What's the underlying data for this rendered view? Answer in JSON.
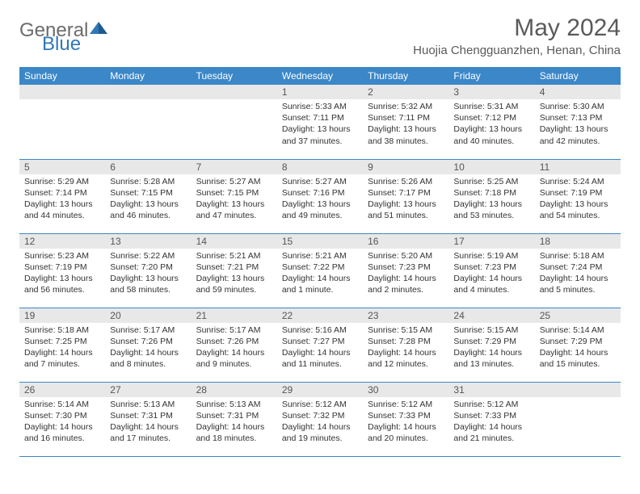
{
  "logo": {
    "general": "General",
    "blue": "Blue"
  },
  "title": "May 2024",
  "location": "Huojia Chengguanzhen, Henan, China",
  "theme": {
    "header_bg": "#3b87c8",
    "header_fg": "#ffffff",
    "daynum_bg": "#e8e8e8",
    "border_color": "#3b87c8",
    "text_color": "#333333",
    "title_color": "#5a5a5a"
  },
  "day_headers": [
    "Sunday",
    "Monday",
    "Tuesday",
    "Wednesday",
    "Thursday",
    "Friday",
    "Saturday"
  ],
  "weeks": [
    [
      {
        "day": "",
        "lines": []
      },
      {
        "day": "",
        "lines": []
      },
      {
        "day": "",
        "lines": []
      },
      {
        "day": "1",
        "lines": [
          "Sunrise: 5:33 AM",
          "Sunset: 7:11 PM",
          "Daylight: 13 hours",
          "and 37 minutes."
        ]
      },
      {
        "day": "2",
        "lines": [
          "Sunrise: 5:32 AM",
          "Sunset: 7:11 PM",
          "Daylight: 13 hours",
          "and 38 minutes."
        ]
      },
      {
        "day": "3",
        "lines": [
          "Sunrise: 5:31 AM",
          "Sunset: 7:12 PM",
          "Daylight: 13 hours",
          "and 40 minutes."
        ]
      },
      {
        "day": "4",
        "lines": [
          "Sunrise: 5:30 AM",
          "Sunset: 7:13 PM",
          "Daylight: 13 hours",
          "and 42 minutes."
        ]
      }
    ],
    [
      {
        "day": "5",
        "lines": [
          "Sunrise: 5:29 AM",
          "Sunset: 7:14 PM",
          "Daylight: 13 hours",
          "and 44 minutes."
        ]
      },
      {
        "day": "6",
        "lines": [
          "Sunrise: 5:28 AM",
          "Sunset: 7:15 PM",
          "Daylight: 13 hours",
          "and 46 minutes."
        ]
      },
      {
        "day": "7",
        "lines": [
          "Sunrise: 5:27 AM",
          "Sunset: 7:15 PM",
          "Daylight: 13 hours",
          "and 47 minutes."
        ]
      },
      {
        "day": "8",
        "lines": [
          "Sunrise: 5:27 AM",
          "Sunset: 7:16 PM",
          "Daylight: 13 hours",
          "and 49 minutes."
        ]
      },
      {
        "day": "9",
        "lines": [
          "Sunrise: 5:26 AM",
          "Sunset: 7:17 PM",
          "Daylight: 13 hours",
          "and 51 minutes."
        ]
      },
      {
        "day": "10",
        "lines": [
          "Sunrise: 5:25 AM",
          "Sunset: 7:18 PM",
          "Daylight: 13 hours",
          "and 53 minutes."
        ]
      },
      {
        "day": "11",
        "lines": [
          "Sunrise: 5:24 AM",
          "Sunset: 7:19 PM",
          "Daylight: 13 hours",
          "and 54 minutes."
        ]
      }
    ],
    [
      {
        "day": "12",
        "lines": [
          "Sunrise: 5:23 AM",
          "Sunset: 7:19 PM",
          "Daylight: 13 hours",
          "and 56 minutes."
        ]
      },
      {
        "day": "13",
        "lines": [
          "Sunrise: 5:22 AM",
          "Sunset: 7:20 PM",
          "Daylight: 13 hours",
          "and 58 minutes."
        ]
      },
      {
        "day": "14",
        "lines": [
          "Sunrise: 5:21 AM",
          "Sunset: 7:21 PM",
          "Daylight: 13 hours",
          "and 59 minutes."
        ]
      },
      {
        "day": "15",
        "lines": [
          "Sunrise: 5:21 AM",
          "Sunset: 7:22 PM",
          "Daylight: 14 hours",
          "and 1 minute."
        ]
      },
      {
        "day": "16",
        "lines": [
          "Sunrise: 5:20 AM",
          "Sunset: 7:23 PM",
          "Daylight: 14 hours",
          "and 2 minutes."
        ]
      },
      {
        "day": "17",
        "lines": [
          "Sunrise: 5:19 AM",
          "Sunset: 7:23 PM",
          "Daylight: 14 hours",
          "and 4 minutes."
        ]
      },
      {
        "day": "18",
        "lines": [
          "Sunrise: 5:18 AM",
          "Sunset: 7:24 PM",
          "Daylight: 14 hours",
          "and 5 minutes."
        ]
      }
    ],
    [
      {
        "day": "19",
        "lines": [
          "Sunrise: 5:18 AM",
          "Sunset: 7:25 PM",
          "Daylight: 14 hours",
          "and 7 minutes."
        ]
      },
      {
        "day": "20",
        "lines": [
          "Sunrise: 5:17 AM",
          "Sunset: 7:26 PM",
          "Daylight: 14 hours",
          "and 8 minutes."
        ]
      },
      {
        "day": "21",
        "lines": [
          "Sunrise: 5:17 AM",
          "Sunset: 7:26 PM",
          "Daylight: 14 hours",
          "and 9 minutes."
        ]
      },
      {
        "day": "22",
        "lines": [
          "Sunrise: 5:16 AM",
          "Sunset: 7:27 PM",
          "Daylight: 14 hours",
          "and 11 minutes."
        ]
      },
      {
        "day": "23",
        "lines": [
          "Sunrise: 5:15 AM",
          "Sunset: 7:28 PM",
          "Daylight: 14 hours",
          "and 12 minutes."
        ]
      },
      {
        "day": "24",
        "lines": [
          "Sunrise: 5:15 AM",
          "Sunset: 7:29 PM",
          "Daylight: 14 hours",
          "and 13 minutes."
        ]
      },
      {
        "day": "25",
        "lines": [
          "Sunrise: 5:14 AM",
          "Sunset: 7:29 PM",
          "Daylight: 14 hours",
          "and 15 minutes."
        ]
      }
    ],
    [
      {
        "day": "26",
        "lines": [
          "Sunrise: 5:14 AM",
          "Sunset: 7:30 PM",
          "Daylight: 14 hours",
          "and 16 minutes."
        ]
      },
      {
        "day": "27",
        "lines": [
          "Sunrise: 5:13 AM",
          "Sunset: 7:31 PM",
          "Daylight: 14 hours",
          "and 17 minutes."
        ]
      },
      {
        "day": "28",
        "lines": [
          "Sunrise: 5:13 AM",
          "Sunset: 7:31 PM",
          "Daylight: 14 hours",
          "and 18 minutes."
        ]
      },
      {
        "day": "29",
        "lines": [
          "Sunrise: 5:12 AM",
          "Sunset: 7:32 PM",
          "Daylight: 14 hours",
          "and 19 minutes."
        ]
      },
      {
        "day": "30",
        "lines": [
          "Sunrise: 5:12 AM",
          "Sunset: 7:33 PM",
          "Daylight: 14 hours",
          "and 20 minutes."
        ]
      },
      {
        "day": "31",
        "lines": [
          "Sunrise: 5:12 AM",
          "Sunset: 7:33 PM",
          "Daylight: 14 hours",
          "and 21 minutes."
        ]
      },
      {
        "day": "",
        "lines": []
      }
    ]
  ]
}
